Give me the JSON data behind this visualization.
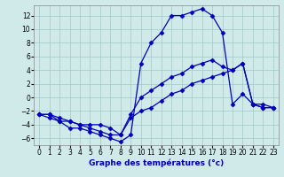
{
  "xlabel": "Graphe des températures (°c)",
  "bg_color": "#d0eaea",
  "grid_color": "#a0c8c8",
  "line_color": "#0000bb",
  "xlim": [
    -0.5,
    23.5
  ],
  "ylim": [
    -7,
    13.5
  ],
  "xticks": [
    0,
    1,
    2,
    3,
    4,
    5,
    6,
    7,
    8,
    9,
    10,
    11,
    12,
    13,
    14,
    15,
    16,
    17,
    18,
    19,
    20,
    21,
    22,
    23
  ],
  "yticks": [
    -6,
    -4,
    -2,
    0,
    2,
    4,
    6,
    8,
    10,
    12
  ],
  "line1_x": [
    0,
    1,
    2,
    3,
    4,
    5,
    6,
    7,
    8,
    9,
    10,
    11,
    12,
    13,
    14,
    15,
    16,
    17,
    18,
    19,
    20,
    21,
    22,
    23
  ],
  "line1_y": [
    -2.5,
    -3,
    -3.5,
    -4.5,
    -4.5,
    -5,
    -5.5,
    -6,
    -6.5,
    -5.5,
    5,
    8,
    9.5,
    12,
    12,
    12.5,
    13,
    12,
    9.5,
    -1,
    0.5,
    -1,
    -1.5,
    -1.5
  ],
  "line2_x": [
    0,
    1,
    2,
    3,
    4,
    5,
    6,
    7,
    8,
    9,
    10,
    11,
    12,
    13,
    14,
    15,
    16,
    17,
    18,
    19,
    20,
    21,
    22,
    23
  ],
  "line2_y": [
    -2.5,
    -2.5,
    -3.5,
    -3.5,
    -4,
    -4,
    -4,
    -4.5,
    -5.5,
    -3,
    -2,
    -1.5,
    -0.5,
    0.5,
    1,
    2,
    2.5,
    3,
    3.5,
    4,
    5,
    -1,
    -1,
    -1.5
  ],
  "line3_x": [
    0,
    1,
    2,
    3,
    4,
    5,
    6,
    7,
    8,
    9,
    10,
    11,
    12,
    13,
    14,
    15,
    16,
    17,
    18,
    19,
    20,
    21,
    22,
    23
  ],
  "line3_y": [
    -2.5,
    -2.5,
    -3,
    -3.5,
    -4,
    -4.5,
    -5,
    -5.5,
    -5.5,
    -2.5,
    0,
    1,
    2,
    3,
    3.5,
    4.5,
    5,
    5.5,
    4.5,
    4,
    5,
    -1,
    -1.5,
    -1.5
  ],
  "marker": "D",
  "markersize": 2.5,
  "linewidth": 0.9,
  "tick_fontsize": 5.5,
  "xlabel_fontsize": 6.5
}
